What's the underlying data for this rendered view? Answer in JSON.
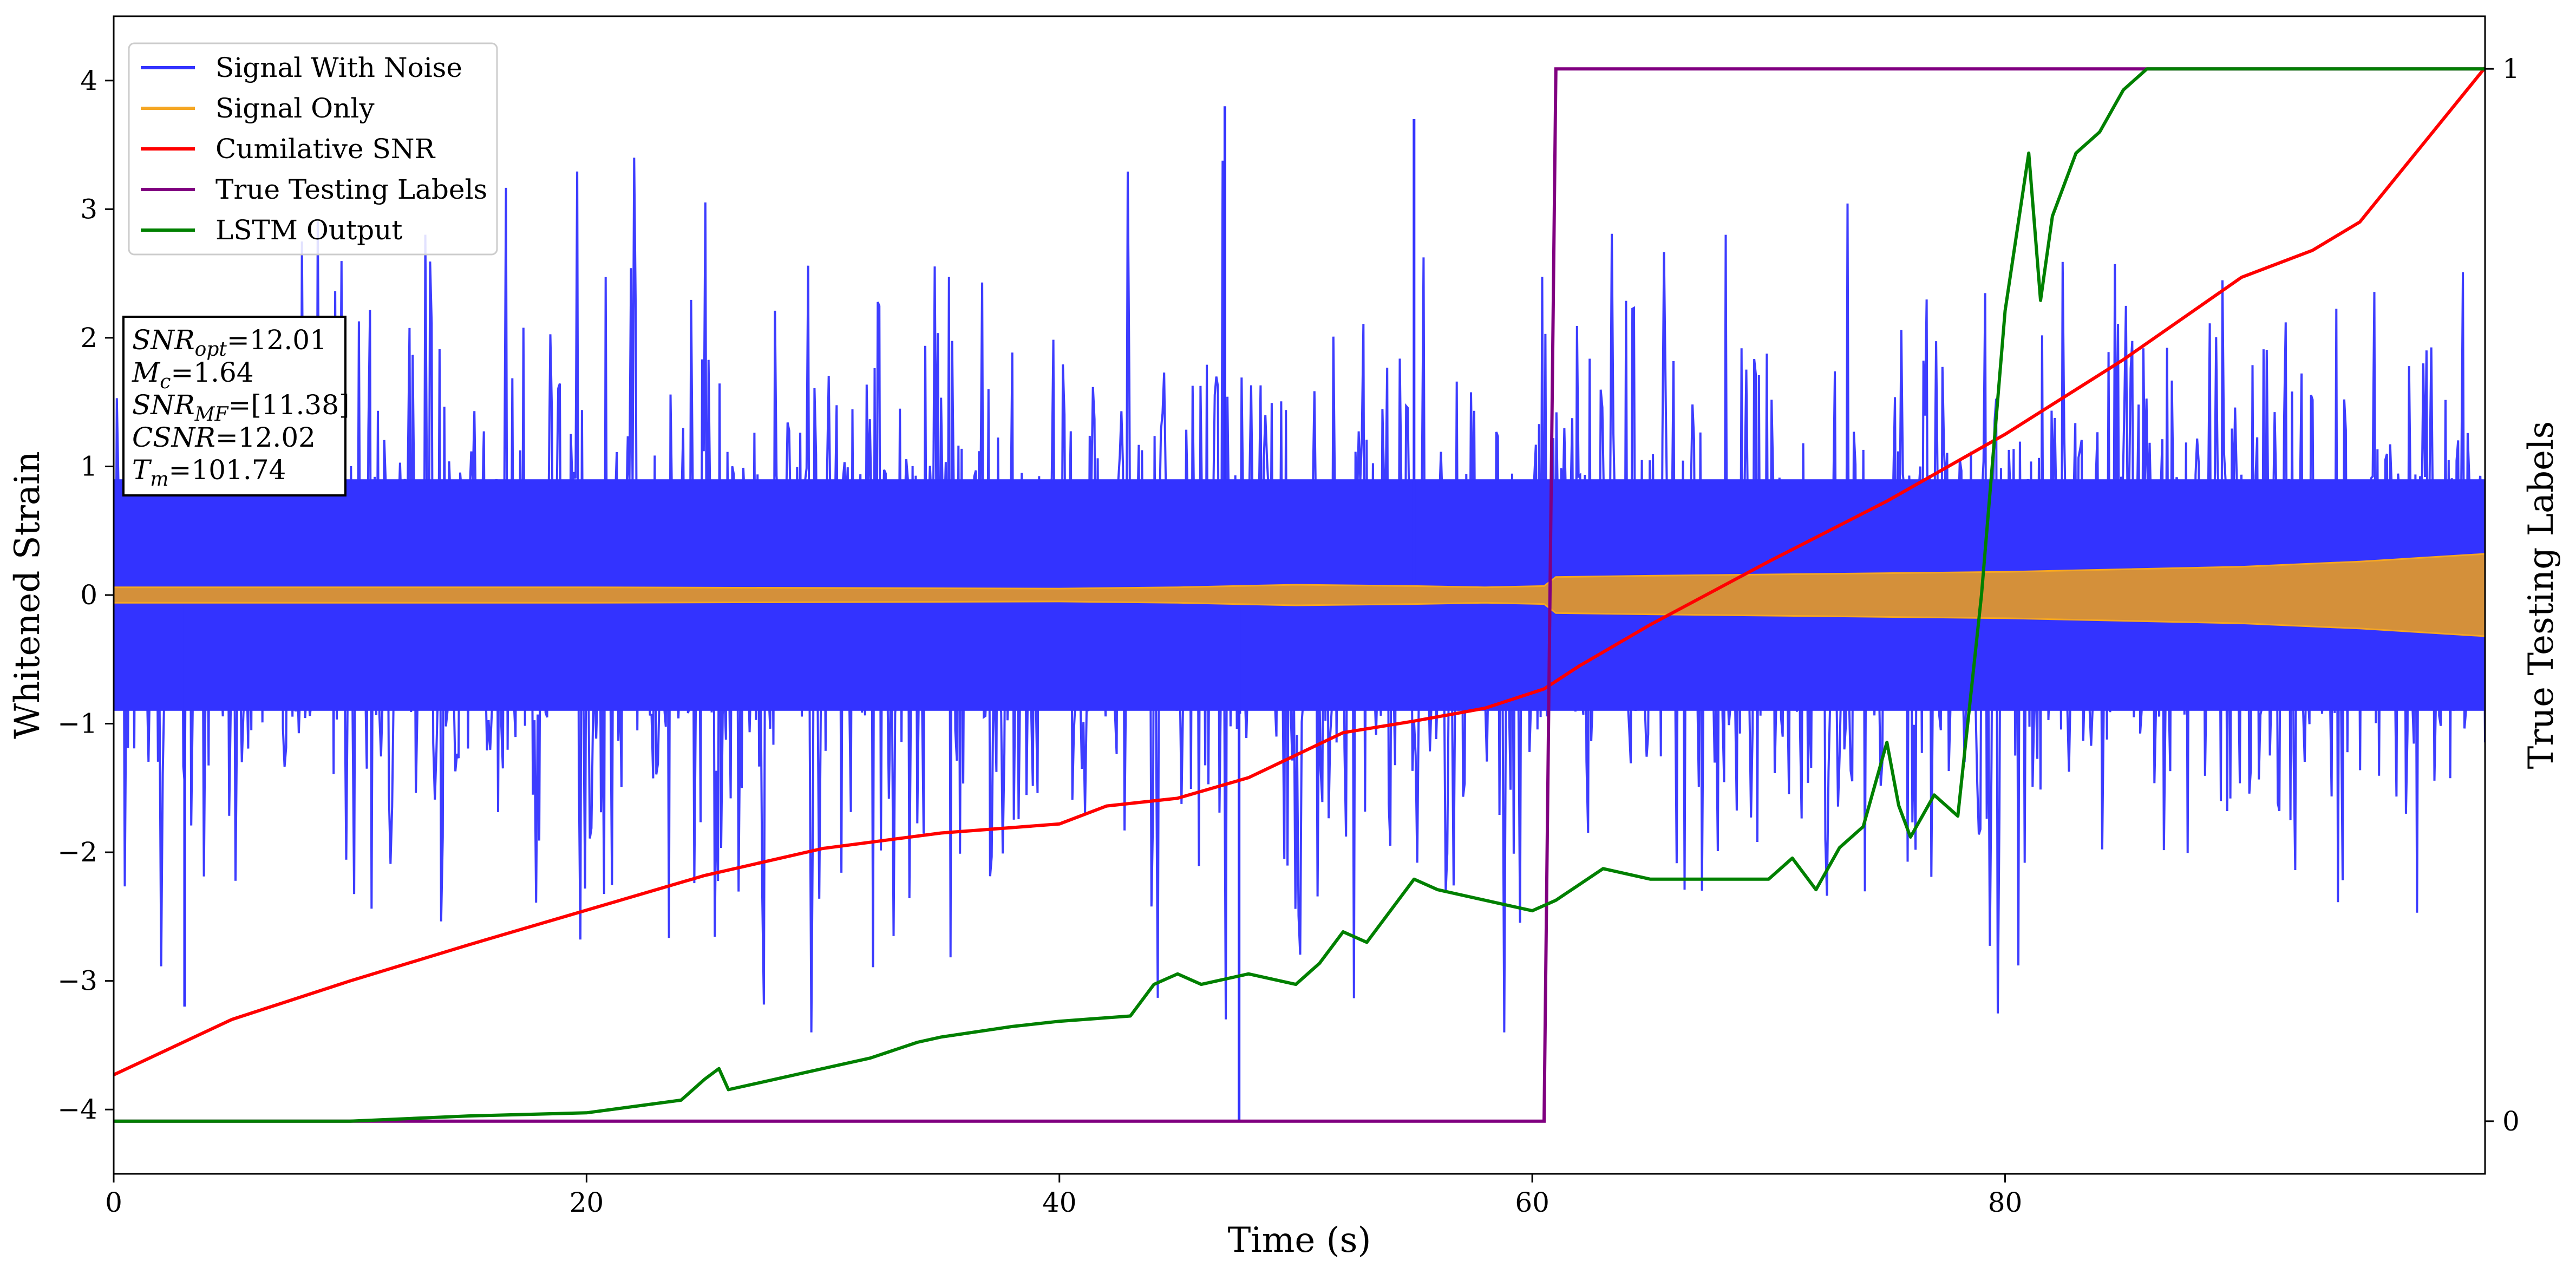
{
  "chart_data": {
    "type": "line",
    "xlabel": "Time (s)",
    "ylabel": "Whitened Strain",
    "y2label": "True Testing Labels",
    "xlim": [
      0,
      100.3
    ],
    "ylim": [
      -4.5,
      4.5
    ],
    "y2lim": [
      -0.05,
      1.05
    ],
    "x_ticks": [
      0,
      20,
      40,
      60,
      80
    ],
    "y_ticks": [
      -4,
      -3,
      -2,
      -1,
      0,
      1,
      2,
      3,
      4
    ],
    "y2_ticks": [
      0,
      1
    ],
    "legend_position": "top-left",
    "colors": {
      "noise": "#3333ff",
      "signal": "#f5a623",
      "overlap": "#d4903a",
      "snr": "#ff0000",
      "labels": "#800080",
      "lstm": "#008000"
    },
    "series": [
      {
        "name": "Signal With Noise",
        "axis": "left",
        "style": "noisy-band",
        "core_amplitude": 0.9,
        "peak_amplitude": 3.8,
        "notable_peaks": [
          {
            "x": 47.0,
            "y": 3.8
          },
          {
            "x": 47.6,
            "y": -4.1
          },
          {
            "x": 3.0,
            "y": -3.2
          },
          {
            "x": 55.0,
            "y": 3.7
          }
        ]
      },
      {
        "name": "Signal Only",
        "axis": "left",
        "style": "amplitude-envelope",
        "x": [
          0,
          20,
          40,
          45,
          50,
          55,
          58,
          60.5,
          61,
          65,
          70,
          75,
          80,
          85,
          90,
          95,
          100.3
        ],
        "amplitude": [
          0.06,
          0.06,
          0.05,
          0.06,
          0.08,
          0.07,
          0.06,
          0.07,
          0.14,
          0.15,
          0.16,
          0.17,
          0.18,
          0.2,
          0.22,
          0.26,
          0.32
        ]
      },
      {
        "name": "Cumilative SNR",
        "axis": "left",
        "x": [
          0,
          5,
          10,
          15,
          20,
          25,
          30,
          35,
          40,
          42,
          45,
          48,
          52,
          55,
          58,
          60.5,
          62,
          65,
          70,
          75,
          80,
          85,
          90,
          93,
          95,
          100.3
        ],
        "y": [
          -3.73,
          -3.3,
          -3.0,
          -2.72,
          -2.45,
          -2.18,
          -1.97,
          -1.85,
          -1.78,
          -1.64,
          -1.58,
          -1.42,
          -1.07,
          -0.98,
          -0.88,
          -0.73,
          -0.55,
          -0.23,
          0.26,
          0.73,
          1.25,
          1.83,
          2.47,
          2.68,
          2.9,
          4.1
        ]
      },
      {
        "name": "True Testing Labels",
        "axis": "right",
        "x": [
          0,
          60.5,
          61.0,
          100.3
        ],
        "y": [
          0,
          0,
          1,
          1
        ]
      },
      {
        "name": "LSTM Output",
        "axis": "right",
        "x": [
          0,
          10,
          15,
          20,
          24,
          25,
          25.6,
          26,
          28,
          30,
          32,
          34,
          35,
          38,
          40,
          43,
          44,
          45,
          46,
          48,
          50,
          51,
          52,
          53,
          55,
          56,
          58,
          60,
          61,
          63,
          65,
          67,
          70,
          71,
          72,
          73,
          74,
          75,
          75.5,
          76,
          77,
          78,
          79,
          80,
          81,
          81.5,
          82,
          83,
          84,
          85,
          86,
          88,
          90,
          100.3
        ],
        "y": [
          0,
          0,
          0.005,
          0.008,
          0.02,
          0.04,
          0.05,
          0.03,
          0.04,
          0.05,
          0.06,
          0.075,
          0.08,
          0.09,
          0.095,
          0.1,
          0.13,
          0.14,
          0.13,
          0.14,
          0.13,
          0.15,
          0.18,
          0.17,
          0.23,
          0.22,
          0.21,
          0.2,
          0.21,
          0.24,
          0.23,
          0.23,
          0.23,
          0.25,
          0.22,
          0.26,
          0.28,
          0.36,
          0.3,
          0.27,
          0.31,
          0.29,
          0.5,
          0.77,
          0.92,
          0.78,
          0.86,
          0.92,
          0.94,
          0.98,
          1.0,
          1.0,
          1.0,
          1.0
        ]
      }
    ],
    "annotation": {
      "lines": [
        {
          "symbol": "SNR",
          "sub": "opt",
          "value": "=12.01"
        },
        {
          "symbol": "M",
          "sub": "c",
          "value": "=1.64"
        },
        {
          "symbol": "SNR",
          "sub": "MF",
          "value": "=[11.38]"
        },
        {
          "symbol": "CSNR",
          "sub": "",
          "value": "=12.02"
        },
        {
          "symbol": "T",
          "sub": "m",
          "value": "=101.74"
        }
      ]
    }
  }
}
